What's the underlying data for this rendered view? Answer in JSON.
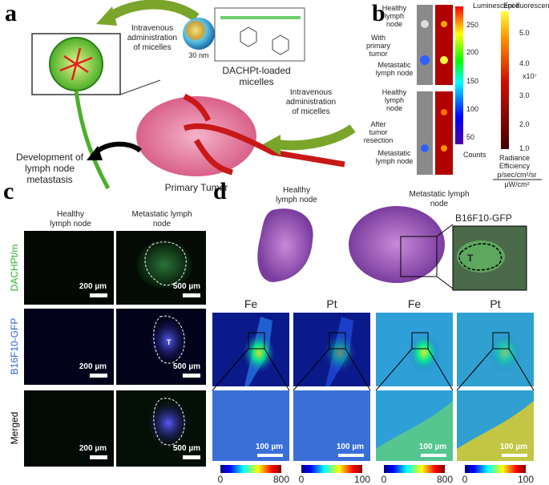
{
  "panel_a": {
    "label": "a",
    "arrow_top_text": [
      "Intravenous",
      "administration",
      "of micelles"
    ],
    "size": "30 nm",
    "micelle_name": [
      "DACHPt-loaded",
      "micelles"
    ],
    "arrow_right_text": [
      "Intravenous",
      "administration",
      "of micelles"
    ],
    "metastasis_text": [
      "Development of",
      "lymph node",
      "metastasis"
    ],
    "tumor": "Primary Tumor"
  },
  "panel_b": {
    "label": "b",
    "rows": [
      {
        "group": [
          "With",
          "primary",
          "tumor"
        ],
        "healthy": [
          "Healthy",
          "lymph",
          "node"
        ],
        "metastatic": [
          "Metastatic",
          "lymph node"
        ]
      },
      {
        "group": [
          "After",
          "tumor",
          "resection"
        ],
        "healthy": [
          "Healthy",
          "lymph",
          "node"
        ],
        "metastatic": [
          "Metastatic",
          "lymph node"
        ]
      }
    ],
    "luminescence": {
      "title": "Luminescence",
      "ticks": [
        "250",
        "200",
        "150",
        "100",
        "50"
      ],
      "unit": "Counts"
    },
    "epi": {
      "title": "Epi-fluorescence",
      "ticks": [
        "5.0",
        "4.0",
        "3.0",
        "2.0",
        "1.0"
      ],
      "multiplier": "x10⁷",
      "unit": [
        "Radiance",
        "Efficiency"
      ],
      "unit_numerator": "p/sec/cm²/sr",
      "unit_denominator": "µW/cm²"
    }
  },
  "panel_c": {
    "label": "c",
    "columns": [
      [
        "Healthy",
        "lymph node"
      ],
      [
        "Metastatic lymph",
        "node"
      ]
    ],
    "rows": [
      {
        "name": "DACHPt/m",
        "scale_left": "200 µm",
        "scale_right": "500 µm"
      },
      {
        "name": "B16F10-GFP",
        "scale_left": "200 µm",
        "scale_right": "500 µm",
        "tumor_mark": "T"
      },
      {
        "name": "Merged",
        "scale_left": "200 µm",
        "scale_right": "500 µm"
      }
    ]
  },
  "panel_d": {
    "label": "d",
    "healthy": [
      "Healthy",
      "lymph node"
    ],
    "metastatic": [
      "Metastatic lymph",
      "node"
    ],
    "inset": "B16F10-GFP",
    "tumor_mark": "T",
    "maps": [
      {
        "element": "Fe",
        "scale_bar": "100 µm",
        "colorbar": [
          "0",
          "800"
        ]
      },
      {
        "element": "Pt",
        "scale_bar": "100 µm",
        "colorbar": [
          "0",
          "100"
        ]
      },
      {
        "element": "Fe",
        "scale_bar": "100 µm",
        "colorbar": [
          "0",
          "800"
        ]
      },
      {
        "element": "Pt",
        "scale_bar": "100 µm",
        "colorbar": [
          "0",
          "100"
        ]
      }
    ]
  }
}
